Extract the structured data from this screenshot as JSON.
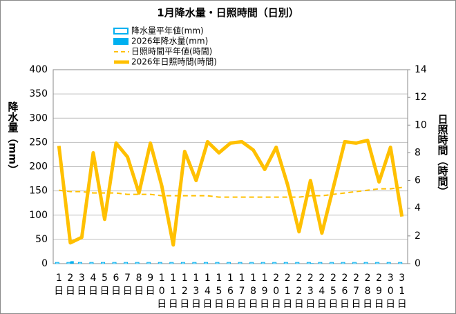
{
  "chart_data": {
    "type": "bar-line",
    "title": "1月降水量・日照時間（日別）",
    "y_label": "降水量（mm）",
    "y2_label": "日照時間（時間）",
    "categories": [
      "1日",
      "2日",
      "3日",
      "4日",
      "5日",
      "6日",
      "7日",
      "8日",
      "9日",
      "10日",
      "11日",
      "12日",
      "13日",
      "14日",
      "15日",
      "16日",
      "17日",
      "18日",
      "19日",
      "20日",
      "21日",
      "22日",
      "23日",
      "24日",
      "25日",
      "26日",
      "27日",
      "28日",
      "29日",
      "30日",
      "31日"
    ],
    "ylim": [
      0,
      400
    ],
    "yticks": [
      0,
      50,
      100,
      150,
      200,
      250,
      300,
      350,
      400
    ],
    "y2lim": [
      0,
      14
    ],
    "y2ticks": [
      0,
      2,
      4,
      6,
      8,
      10,
      12,
      14
    ],
    "grid": true,
    "series": [
      {
        "name": "降水量平年値(mm)",
        "type": "bar",
        "style": "hollow",
        "color": "#00b0f0",
        "values": [
          2.5,
          2.5,
          2.5,
          2.5,
          2.5,
          2.5,
          2.5,
          2.5,
          2.5,
          2.5,
          2.5,
          2.5,
          2.5,
          2.5,
          2.5,
          2.5,
          2.5,
          2.5,
          2.5,
          2.5,
          2.5,
          2.5,
          2.5,
          2.5,
          2.5,
          2.5,
          2.5,
          2.5,
          2.5,
          2.5,
          2.5
        ]
      },
      {
        "name": "2026年降水量(mm)",
        "type": "bar",
        "style": "solid",
        "color": "#00b0f0",
        "values": [
          0,
          5,
          0,
          0,
          0,
          0,
          0,
          0,
          0,
          0,
          0,
          0,
          0,
          0,
          0,
          0,
          0,
          0,
          0,
          0,
          0,
          0,
          1,
          0,
          0,
          0,
          0,
          0,
          0,
          0,
          0
        ]
      },
      {
        "name": "日照時間平年値(時間)",
        "type": "line",
        "style": "dashed",
        "axis": "y2",
        "color": "#ffc000",
        "values": [
          5.3,
          5.2,
          5.2,
          5.1,
          5.1,
          5.1,
          5.0,
          5.0,
          5.0,
          4.9,
          4.9,
          4.9,
          4.9,
          4.9,
          4.8,
          4.8,
          4.8,
          4.8,
          4.8,
          4.8,
          4.8,
          4.8,
          4.9,
          4.9,
          5.0,
          5.1,
          5.2,
          5.3,
          5.4,
          5.4,
          5.5
        ]
      },
      {
        "name": "2026年日照時間(時間)",
        "type": "line",
        "style": "solid",
        "axis": "y2",
        "color": "#ffc000",
        "values": [
          8.5,
          1.5,
          1.9,
          8.0,
          3.2,
          8.7,
          7.7,
          5.1,
          8.7,
          5.6,
          1.35,
          8.1,
          6.0,
          8.8,
          8.0,
          8.7,
          8.8,
          8.2,
          6.8,
          8.4,
          5.7,
          2.3,
          6.0,
          2.2,
          5.5,
          8.8,
          8.7,
          8.9,
          5.9,
          8.4,
          3.4
        ]
      }
    ]
  }
}
